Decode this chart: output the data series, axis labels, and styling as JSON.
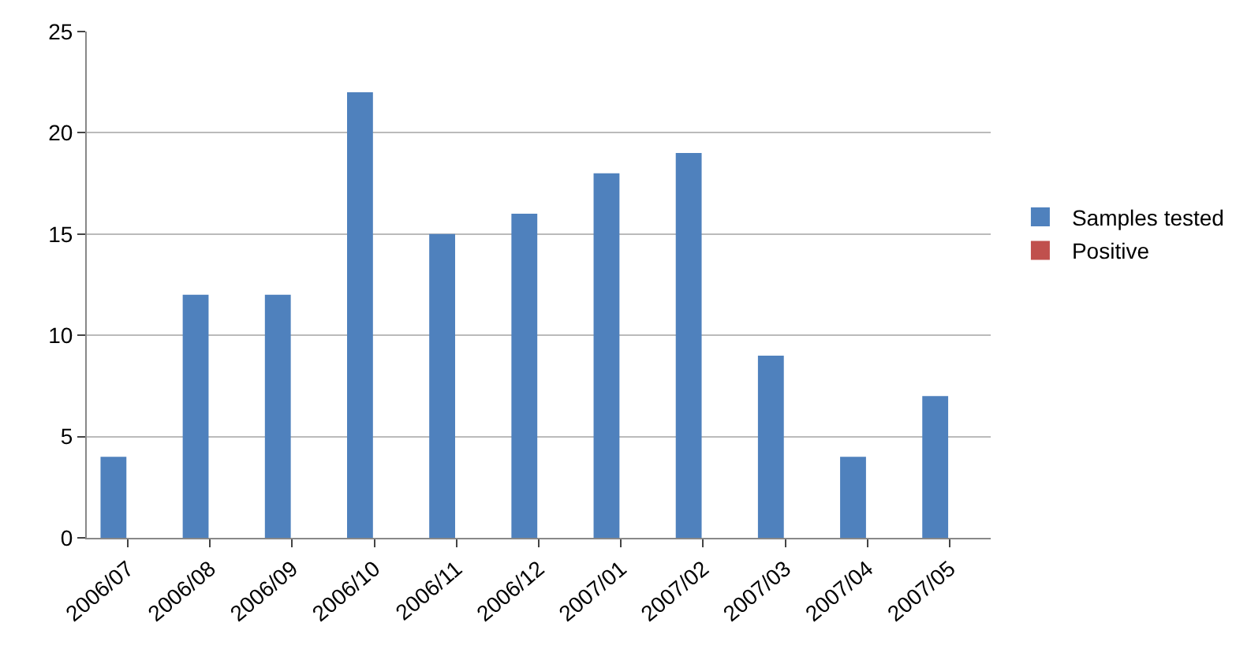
{
  "chart_data": {
    "type": "bar",
    "categories": [
      "2006/07",
      "2006/08",
      "2006/09",
      "2006/10",
      "2006/11",
      "2006/12",
      "2007/01",
      "2007/02",
      "2007/03",
      "2007/04",
      "2007/05"
    ],
    "series": [
      {
        "name": "Samples tested",
        "color": "#4f81bd",
        "values": [
          4,
          12,
          12,
          22,
          15,
          16,
          18,
          19,
          9,
          4,
          7
        ]
      },
      {
        "name": "Positive",
        "color": "#c0504d",
        "values": [
          0,
          0,
          0,
          0,
          0,
          0,
          0,
          0,
          0,
          0,
          0
        ]
      }
    ],
    "ylim": [
      0,
      25
    ],
    "yticks": [
      0,
      5,
      10,
      15,
      20,
      25
    ],
    "grid": "y",
    "legend": "right"
  }
}
